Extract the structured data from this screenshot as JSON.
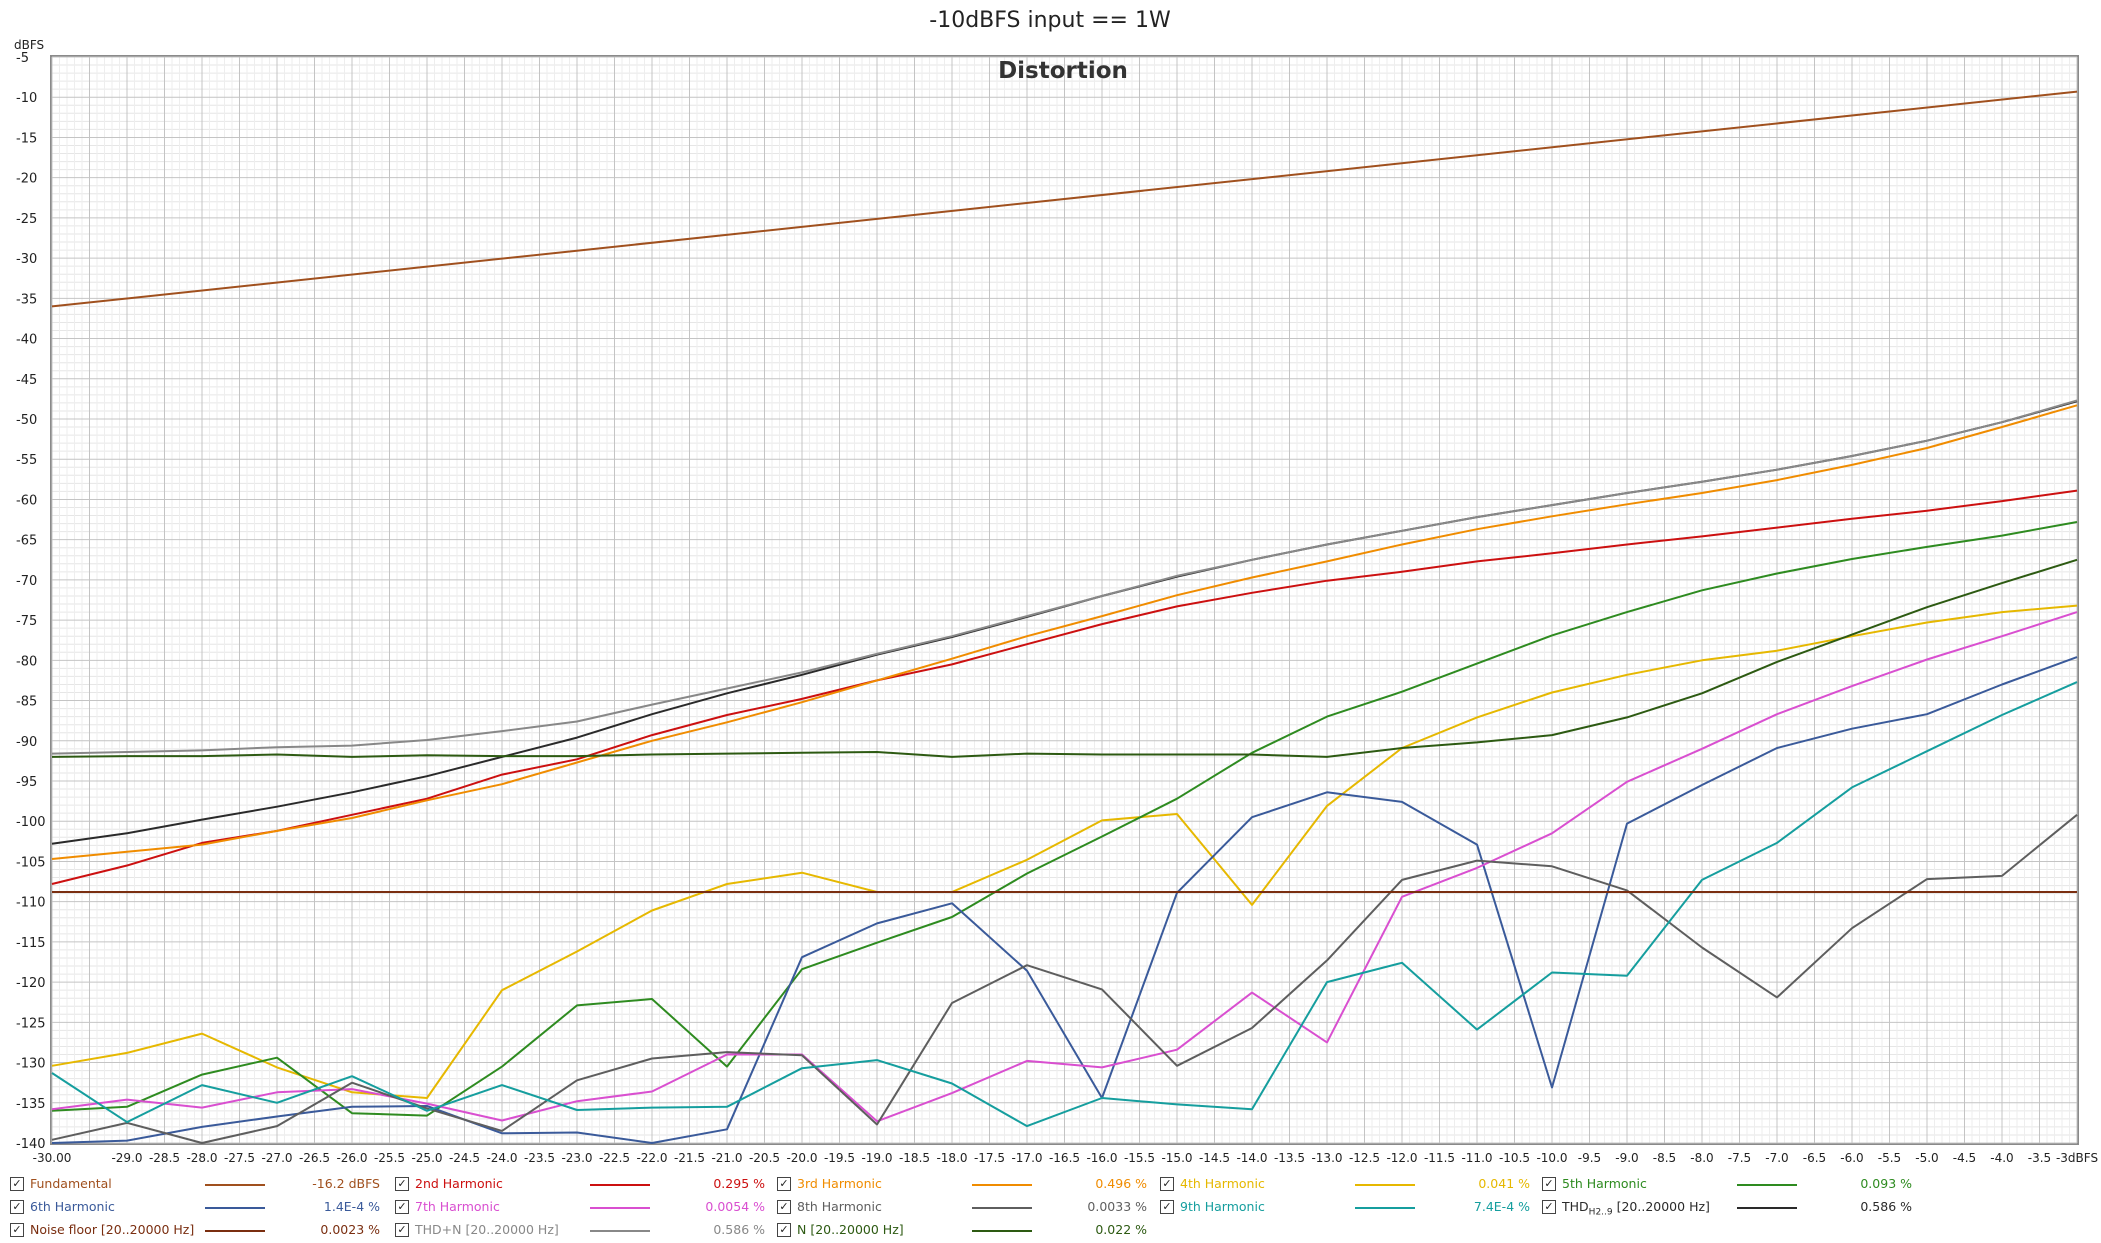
{
  "chart_data": {
    "type": "line",
    "title": "-10dBFS input == 1W",
    "subtitle": "Distortion",
    "ylabel": "dBFS",
    "xlabel": "",
    "xlim": [
      -30,
      -3
    ],
    "ylim": [
      -140,
      -5
    ],
    "x_tick_labels": [
      "-30.00",
      "-29.0",
      "-28.5",
      "-28.0",
      "-27.5",
      "-27.0",
      "-26.5",
      "-26.0",
      "-25.5",
      "-25.0",
      "-24.5",
      "-24.0",
      "-23.5",
      "-23.0",
      "-22.5",
      "-22.0",
      "-21.5",
      "-21.0",
      "-20.5",
      "-20.0",
      "-19.5",
      "-19.0",
      "-18.5",
      "-18.0",
      "-17.5",
      "-17.0",
      "-16.5",
      "-16.0",
      "-15.5",
      "-15.0",
      "-14.5",
      "-14.0",
      "-13.5",
      "-13.0",
      "-12.5",
      "-12.0",
      "-11.5",
      "-11.0",
      "-10.5",
      "-10.0",
      "-9.5",
      "-9.0",
      "-8.5",
      "-8.0",
      "-7.5",
      "-7.0",
      "-6.5",
      "-6.0",
      "-5.5",
      "-5.0",
      "-4.5",
      "-4.0",
      "-3.5",
      "-3dBFS"
    ],
    "y_tick_labels": [
      "-5",
      "-10",
      "-15",
      "-20",
      "-25",
      "-30",
      "-35",
      "-40",
      "-45",
      "-50",
      "-55",
      "-60",
      "-65",
      "-70",
      "-75",
      "-80",
      "-85",
      "-90",
      "-95",
      "-100",
      "-105",
      "-110",
      "-115",
      "-120",
      "-125",
      "-130",
      "-135",
      "-140"
    ],
    "grid": true,
    "legend_position": "bottom",
    "series": [
      {
        "name": "Fundamental",
        "color": "#a0501e",
        "value": "-16.2 dBFS",
        "x": [
          -30,
          -3
        ],
        "y": [
          -36,
          -9.3
        ]
      },
      {
        "name": "2nd Harmonic",
        "color": "#cc1010",
        "value": "0.295 %",
        "x": [
          -30,
          -29,
          -28,
          -27,
          -26,
          -25,
          -24,
          -23,
          -22,
          -21,
          -20,
          -19,
          -18,
          -17,
          -16,
          -15,
          -14,
          -13,
          -12,
          -11,
          -10,
          -9,
          -8,
          -7,
          -6,
          -5,
          -4,
          -3
        ],
        "y": [
          -107.8,
          -105.5,
          -102.7,
          -101.2,
          -99.2,
          -97.2,
          -94.2,
          -92.3,
          -89.3,
          -86.8,
          -84.8,
          -82.5,
          -80.5,
          -78,
          -75.5,
          -73.3,
          -71.6,
          -70.1,
          -69,
          -67.7,
          -66.7,
          -65.6,
          -64.6,
          -63.5,
          -62.4,
          -61.4,
          -60.2,
          -58.9
        ]
      },
      {
        "name": "3rd Harmonic",
        "color": "#f08c00",
        "value": "0.496 %",
        "x": [
          -30,
          -29,
          -28,
          -27,
          -26,
          -25,
          -24,
          -23,
          -22,
          -21,
          -20,
          -19,
          -18,
          -17,
          -16,
          -15,
          -14,
          -13,
          -12,
          -11,
          -10,
          -9,
          -8,
          -7,
          -6,
          -5,
          -4,
          -3
        ],
        "y": [
          -104.7,
          -103.8,
          -102.9,
          -101.2,
          -99.6,
          -97.4,
          -95.4,
          -92.7,
          -90,
          -87.7,
          -85.2,
          -82.5,
          -79.8,
          -77,
          -74.5,
          -71.9,
          -69.7,
          -67.7,
          -65.6,
          -63.7,
          -62.1,
          -60.6,
          -59.2,
          -57.6,
          -55.7,
          -53.6,
          -51,
          -48.3
        ]
      },
      {
        "name": "4th Harmonic",
        "color": "#e6b800",
        "value": "0.041 %",
        "x": [
          -30,
          -29,
          -28,
          -27,
          -26,
          -25,
          -24,
          -23,
          -22,
          -21,
          -20,
          -19,
          -18,
          -17,
          -16,
          -15,
          -14,
          -13,
          -12,
          -11,
          -10,
          -9,
          -8,
          -7,
          -6,
          -5,
          -4,
          -3
        ],
        "y": [
          -130.4,
          -128.8,
          -126.4,
          -130.6,
          -133.7,
          -134.4,
          -121,
          -116.2,
          -111.1,
          -107.8,
          -106.4,
          -108.8,
          -108.8,
          -104.8,
          -99.9,
          -99.1,
          -110.4,
          -98.1,
          -90.9,
          -87.1,
          -84,
          -81.8,
          -80,
          -78.8,
          -77,
          -75.3,
          -74,
          -73.2
        ]
      },
      {
        "name": "5th Harmonic",
        "color": "#2e8b20",
        "value": "0.093 %",
        "x": [
          -30,
          -29,
          -28,
          -27,
          -26,
          -25,
          -24,
          -23,
          -22,
          -21,
          -20,
          -19,
          -18,
          -17,
          -16,
          -15,
          -14,
          -13,
          -12,
          -11,
          -10,
          -9,
          -8,
          -7,
          -6,
          -5,
          -4,
          -3
        ],
        "y": [
          -136,
          -135.5,
          -131.5,
          -129.4,
          -136.3,
          -136.6,
          -130.5,
          -122.9,
          -122.1,
          -130.5,
          -118.4,
          -115.1,
          -111.9,
          -106.5,
          -101.9,
          -97.2,
          -91.5,
          -87,
          -83.9,
          -80.4,
          -76.9,
          -74,
          -71.3,
          -69.2,
          -67.4,
          -65.9,
          -64.5,
          -62.8
        ]
      },
      {
        "name": "6th Harmonic",
        "color": "#3a5a9a",
        "value": "1.4E-4 %",
        "x": [
          -30,
          -29,
          -28,
          -27,
          -26,
          -25,
          -24,
          -23,
          -22,
          -21,
          -20,
          -19,
          -18,
          -17,
          -16,
          -15,
          -14,
          -13,
          -12,
          -11,
          -10,
          -9,
          -8,
          -7,
          -6,
          -5,
          -4,
          -3
        ],
        "y": [
          -140,
          -139.7,
          -138,
          -136.7,
          -135.5,
          -135.4,
          -138.8,
          -138.7,
          -140,
          -138.3,
          -116.9,
          -112.7,
          -110.2,
          -118.6,
          -134.4,
          -108.9,
          -99.5,
          -96.4,
          -97.6,
          -102.9,
          -133.1,
          -100.3,
          -95.5,
          -90.9,
          -88.5,
          -86.7,
          -83,
          -79.6
        ]
      },
      {
        "name": "7th Harmonic",
        "color": "#d94fd0",
        "value": "0.0054 %",
        "x": [
          -30,
          -29,
          -28,
          -27,
          -26,
          -25,
          -24,
          -23,
          -22,
          -21,
          -20,
          -19,
          -18,
          -17,
          -16,
          -15,
          -14,
          -13,
          -12,
          -11,
          -10,
          -9,
          -8,
          -7,
          -6,
          -5,
          -4,
          -3
        ],
        "y": [
          -135.8,
          -134.6,
          -135.6,
          -133.7,
          -133.3,
          -135.1,
          -137.2,
          -134.8,
          -133.6,
          -129,
          -129,
          -137.3,
          -133.8,
          -129.8,
          -130.6,
          -128.4,
          -121.3,
          -127.5,
          -109.4,
          -105.8,
          -101.5,
          -95.1,
          -91,
          -86.7,
          -83.2,
          -79.9,
          -77,
          -74
        ]
      },
      {
        "name": "8th Harmonic",
        "color": "#5e5e5e",
        "value": "0.0033 %",
        "x": [
          -30,
          -29,
          -28,
          -27,
          -26,
          -25,
          -24,
          -23,
          -22,
          -21,
          -20,
          -19,
          -18,
          -17,
          -16,
          -15,
          -14,
          -13,
          -12,
          -11,
          -10,
          -9,
          -8,
          -7,
          -6,
          -5,
          -4,
          -3
        ],
        "y": [
          -139.6,
          -137.5,
          -140,
          -137.9,
          -132.5,
          -135.7,
          -138.5,
          -132.2,
          -129.5,
          -128.7,
          -129.1,
          -137.7,
          -122.6,
          -117.9,
          -120.9,
          -130.4,
          -125.7,
          -117.3,
          -107.3,
          -104.9,
          -105.6,
          -108.6,
          -115.7,
          -121.9,
          -113.3,
          -107.2,
          -106.8,
          -99.2
        ]
      },
      {
        "name": "9th Harmonic",
        "color": "#159e9e",
        "value": "7.4E-4 %",
        "x": [
          -30,
          -29,
          -28,
          -27,
          -26,
          -25,
          -24,
          -23,
          -22,
          -21,
          -20,
          -19,
          -18,
          -17,
          -16,
          -15,
          -14,
          -13,
          -12,
          -11,
          -10,
          -9,
          -8,
          -7,
          -6,
          -5,
          -4,
          -3
        ],
        "y": [
          -131.3,
          -137.4,
          -132.8,
          -135,
          -131.7,
          -136,
          -132.8,
          -135.9,
          -135.6,
          -135.5,
          -130.7,
          -129.7,
          -132.6,
          -137.9,
          -134.4,
          -135.2,
          -135.8,
          -120,
          -117.6,
          -125.9,
          -118.8,
          -119.2,
          -107.3,
          -102.7,
          -95.8,
          -91.3,
          -86.8,
          -82.7
        ]
      },
      {
        "name": "THD",
        "color": "#2a2a2a",
        "value": "0.586 %",
        "name_sub": "H2..9",
        "name_range": "[20..20000 Hz]",
        "x": [
          -30,
          -29,
          -28,
          -27,
          -26,
          -25,
          -24,
          -23,
          -22,
          -21,
          -20,
          -19,
          -18,
          -17,
          -16,
          -15,
          -14,
          -13,
          -12,
          -11,
          -10,
          -9,
          -8,
          -7,
          -6,
          -5,
          -4,
          -3
        ],
        "y": [
          -102.8,
          -101.5,
          -99.8,
          -98.2,
          -96.4,
          -94.4,
          -92,
          -89.6,
          -86.7,
          -84.1,
          -81.8,
          -79.3,
          -77.1,
          -74.6,
          -72,
          -69.6,
          -67.5,
          -65.6,
          -63.9,
          -62.2,
          -60.7,
          -59.2,
          -57.8,
          -56.3,
          -54.6,
          -52.7,
          -50.4,
          -47.8
        ]
      },
      {
        "name": "Noise floor [20..20000 Hz]",
        "color": "#7a2e10",
        "value": "0.0023 %",
        "x": [
          -30,
          -3
        ],
        "y": [
          -108.8,
          -108.8
        ]
      },
      {
        "name": "THD+N [20..20000 Hz]",
        "color": "#888888",
        "value": "0.586 %",
        "x": [
          -30,
          -29,
          -28,
          -27,
          -26,
          -25,
          -24,
          -23,
          -22,
          -21,
          -20,
          -19,
          -18,
          -17,
          -16,
          -15,
          -14,
          -13,
          -12,
          -11,
          -10,
          -9,
          -8,
          -7,
          -6,
          -5,
          -4,
          -3
        ],
        "y": [
          -91.6,
          -91.4,
          -91.2,
          -90.8,
          -90.6,
          -89.9,
          -88.8,
          -87.6,
          -85.5,
          -83.5,
          -81.5,
          -79.2,
          -77,
          -74.5,
          -72,
          -69.5,
          -67.5,
          -65.6,
          -63.9,
          -62.2,
          -60.7,
          -59.2,
          -57.8,
          -56.3,
          -54.6,
          -52.7,
          -50.4,
          -47.7
        ]
      },
      {
        "name": "N [20..20000 Hz]",
        "color": "#2d5a12",
        "value": "0.022 %",
        "x": [
          -30,
          -29,
          -28,
          -27,
          -26,
          -25,
          -24,
          -23,
          -22,
          -21,
          -20,
          -19,
          -18,
          -17,
          -16,
          -15,
          -14,
          -13,
          -12,
          -11,
          -10,
          -9,
          -8,
          -7,
          -6,
          -5,
          -4,
          -3
        ],
        "y": [
          -92,
          -91.9,
          -91.9,
          -91.7,
          -92,
          -91.8,
          -91.9,
          -91.9,
          -91.7,
          -91.6,
          -91.5,
          -91.4,
          -92,
          -91.6,
          -91.7,
          -91.7,
          -91.7,
          -92,
          -90.9,
          -90.2,
          -89.3,
          -87.1,
          -84.1,
          -80.2,
          -76.8,
          -73.4,
          -70.4,
          -67.5
        ]
      }
    ]
  }
}
